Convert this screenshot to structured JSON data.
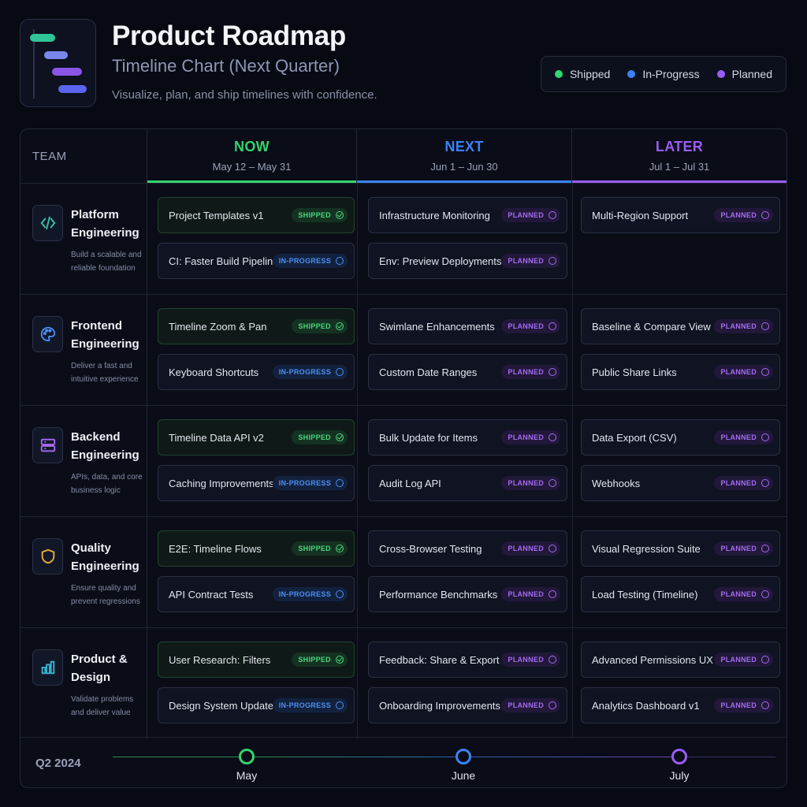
{
  "header": {
    "title": "Product Roadmap",
    "subtitle": "Timeline Chart (Next Quarter)",
    "tagline": "Visualize, plan, and ship timelines with confidence."
  },
  "legend": [
    {
      "label": "Shipped",
      "color": "#34d46e"
    },
    {
      "label": "In-Progress",
      "color": "#3b82f6"
    },
    {
      "label": "Planned",
      "color": "#9b5cf6"
    }
  ],
  "board": {
    "team_header": "TEAM",
    "phases": [
      {
        "name": "NOW",
        "dates": "May 12 – May 31",
        "color": "#34d46e"
      },
      {
        "name": "NEXT",
        "dates": "Jun 1 – Jun 30",
        "color": "#3b82f6"
      },
      {
        "name": "LATER",
        "dates": "Jul 1 – Jul 31",
        "color": "#9b5cf6"
      }
    ],
    "teams": [
      {
        "name": "Platform Engineering",
        "description": "Build a scalable and reliable foundation",
        "icon": "code-icon",
        "now": [
          {
            "label": "Project Templates v1",
            "status": "SHIPPED"
          },
          {
            "label": "CI: Faster Build Pipeline",
            "status": "IN-PROGRESS"
          }
        ],
        "next": [
          {
            "label": "Infrastructure Monitoring",
            "status": "PLANNED"
          },
          {
            "label": "Env: Preview Deployments",
            "status": "PLANNED"
          }
        ],
        "later": [
          {
            "label": "Multi-Region Support",
            "status": "PLANNED"
          }
        ]
      },
      {
        "name": "Frontend Engineering",
        "description": "Deliver a fast and intuitive experience",
        "icon": "palette-icon",
        "now": [
          {
            "label": "Timeline Zoom & Pan",
            "status": "SHIPPED"
          },
          {
            "label": "Keyboard Shortcuts",
            "status": "IN-PROGRESS"
          }
        ],
        "next": [
          {
            "label": "Swimlane Enhancements",
            "status": "PLANNED"
          },
          {
            "label": "Custom Date Ranges",
            "status": "PLANNED"
          }
        ],
        "later": [
          {
            "label": "Baseline & Compare View",
            "status": "PLANNED"
          },
          {
            "label": "Public Share Links",
            "status": "PLANNED"
          }
        ]
      },
      {
        "name": "Backend Engineering",
        "description": "APIs, data, and core business logic",
        "icon": "server-icon",
        "now": [
          {
            "label": "Timeline Data API v2",
            "status": "SHIPPED"
          },
          {
            "label": "Caching Improvements",
            "status": "IN-PROGRESS"
          }
        ],
        "next": [
          {
            "label": "Bulk Update for Items",
            "status": "PLANNED"
          },
          {
            "label": "Audit Log API",
            "status": "PLANNED"
          }
        ],
        "later": [
          {
            "label": "Data Export (CSV)",
            "status": "PLANNED"
          },
          {
            "label": "Webhooks",
            "status": "PLANNED"
          }
        ]
      },
      {
        "name": "Quality Engineering",
        "description": "Ensure quality and prevent regressions",
        "icon": "shield-icon",
        "now": [
          {
            "label": "E2E: Timeline Flows",
            "status": "SHIPPED"
          },
          {
            "label": "API Contract Tests",
            "status": "IN-PROGRESS"
          }
        ],
        "next": [
          {
            "label": "Cross-Browser Testing",
            "status": "PLANNED"
          },
          {
            "label": "Performance Benchmarks",
            "status": "PLANNED"
          }
        ],
        "later": [
          {
            "label": "Visual Regression Suite",
            "status": "PLANNED"
          },
          {
            "label": "Load Testing (Timeline)",
            "status": "PLANNED"
          }
        ]
      },
      {
        "name": "Product & Design",
        "description": "Validate problems and deliver value",
        "icon": "bar-chart-icon",
        "now": [
          {
            "label": "User Research: Filters",
            "status": "SHIPPED"
          },
          {
            "label": "Design System Updates",
            "status": "IN-PROGRESS"
          }
        ],
        "next": [
          {
            "label": "Feedback: Share & Export",
            "status": "PLANNED"
          },
          {
            "label": "Onboarding Improvements",
            "status": "PLANNED"
          }
        ],
        "later": [
          {
            "label": "Advanced Permissions UX",
            "status": "PLANNED"
          },
          {
            "label": "Analytics Dashboard v1",
            "status": "PLANNED"
          }
        ]
      }
    ]
  },
  "timeline": {
    "quarter": "Q2 2024",
    "months": [
      "May",
      "June",
      "July"
    ]
  }
}
